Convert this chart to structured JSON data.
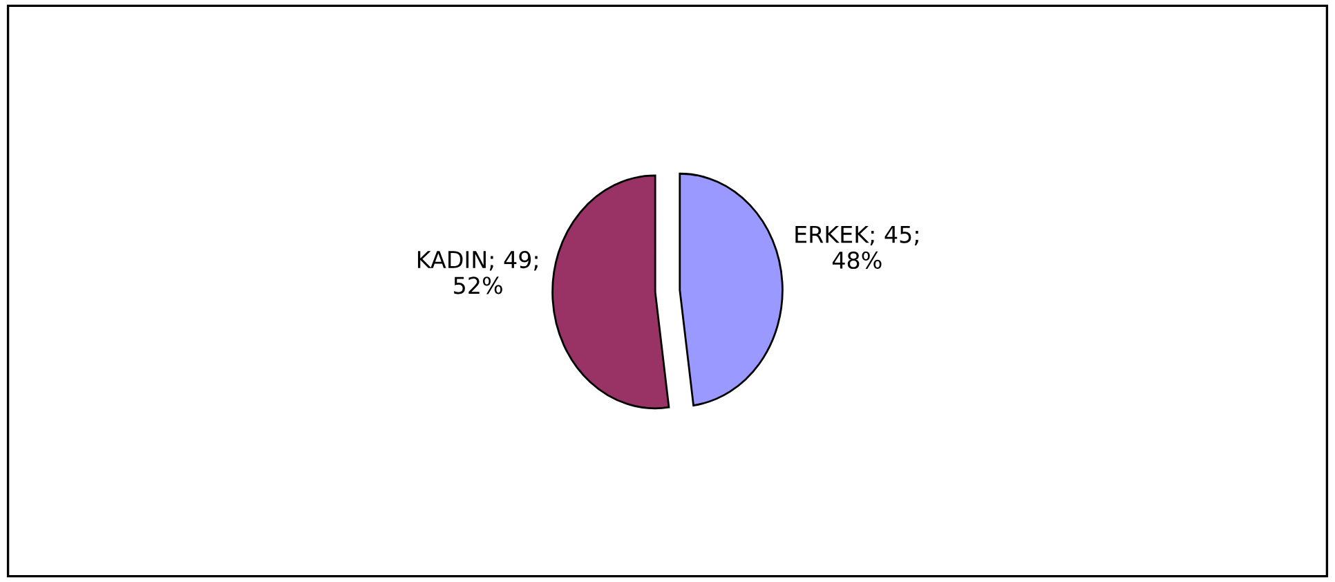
{
  "chart_data": {
    "type": "pie",
    "categories": [
      "ERKEK",
      "KADIN"
    ],
    "values": [
      45,
      49
    ],
    "colors": [
      "#9999ff",
      "#993366"
    ],
    "value_labels": [
      "45; 48%",
      "49; 52%"
    ],
    "legend": false
  }
}
